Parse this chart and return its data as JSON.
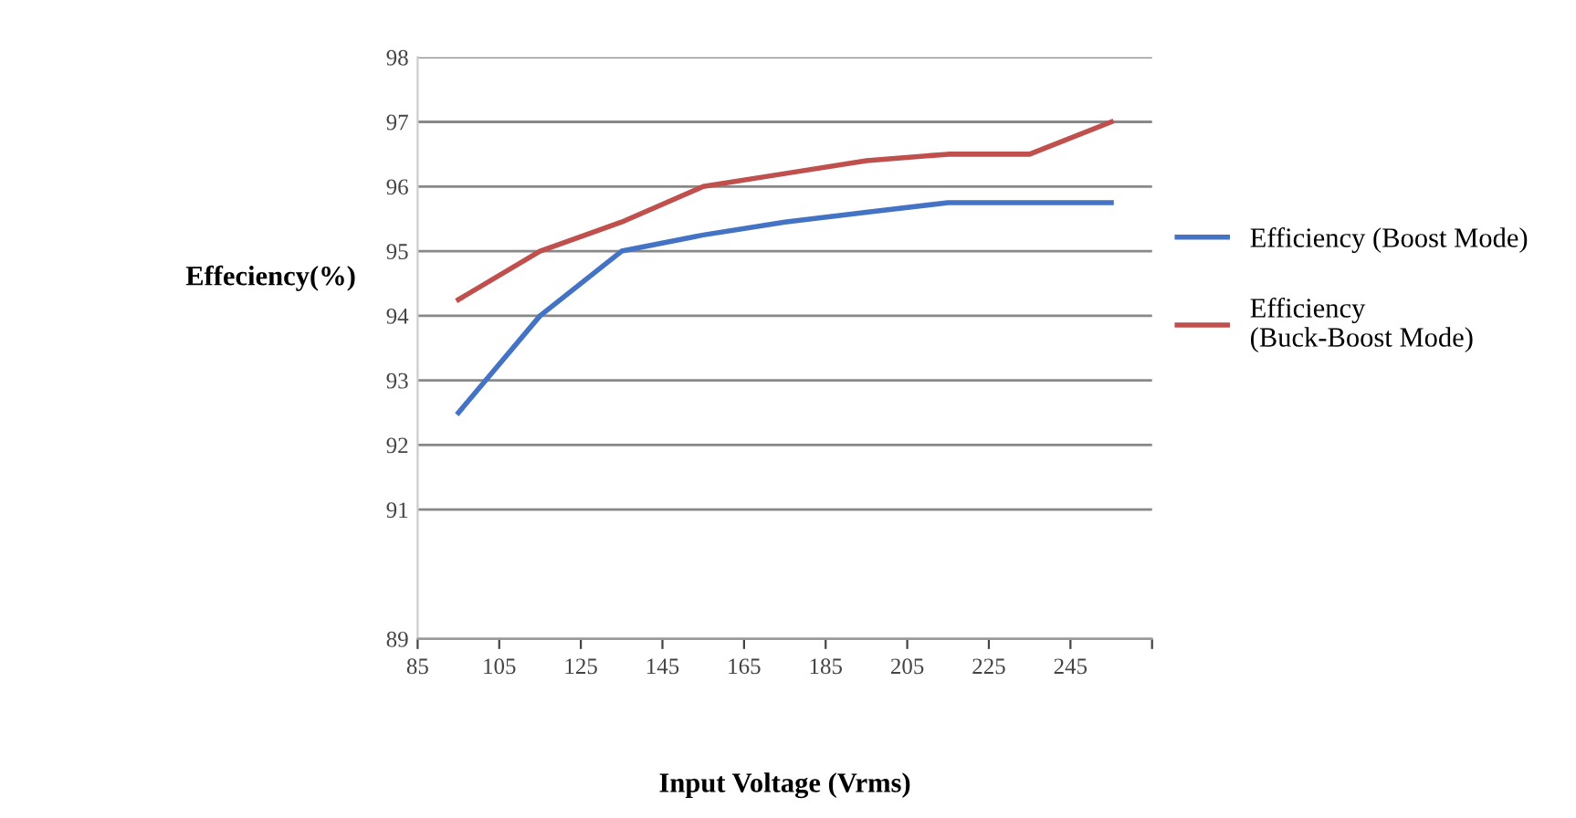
{
  "chart_data": {
    "type": "line",
    "xlabel": "Input Voltage (Vrms)",
    "ylabel": "Effeciency(%)",
    "x": [
      95,
      115,
      135,
      155,
      175,
      195,
      215,
      235,
      255
    ],
    "series": [
      {
        "name": "Efficiency (Boost Mode)",
        "color": "#4472c4",
        "values": [
          92.5,
          94.0,
          95.0,
          95.25,
          95.45,
          95.6,
          95.75,
          95.75,
          95.75
        ]
      },
      {
        "name": "Efficiency\n(Buck-Boost Mode)",
        "color": "#c0504d",
        "values": [
          94.25,
          95.0,
          95.45,
          96.0,
          96.2,
          96.4,
          96.5,
          96.5,
          97.0
        ]
      }
    ],
    "xlim": [
      85,
      265
    ],
    "xticks": [
      85,
      105,
      125,
      145,
      165,
      185,
      205,
      225,
      245,
      {
        "value": 265,
        "label": null
      }
    ],
    "ylim": [
      89,
      98
    ],
    "yticks": [
      89,
      91,
      92,
      93,
      94,
      95,
      96,
      97,
      98
    ],
    "grid": "y",
    "legend": "right",
    "marker": "none",
    "line_style": "solid"
  }
}
